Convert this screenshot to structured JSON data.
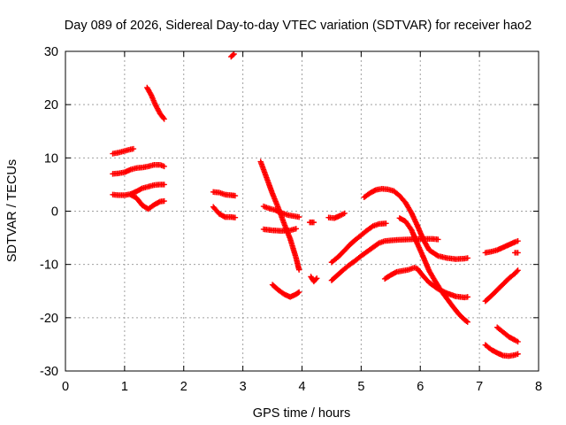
{
  "chart_data": {
    "type": "scatter",
    "title": "Day 089 of 2026, Sidereal Day-to-day VTEC variation (SDTVAR) for receiver hao2",
    "xlabel": "GPS time / hours",
    "ylabel": "SDTVAR / TECUs",
    "xlim": [
      0,
      8
    ],
    "ylim": [
      -30,
      30
    ],
    "xticks": [
      "0",
      "1",
      "2",
      "3",
      "4",
      "5",
      "6",
      "7",
      "8"
    ],
    "yticks": [
      "-30",
      "-20",
      "-10",
      "0",
      "10",
      "20",
      "30"
    ],
    "grid": true,
    "marker": "plus",
    "color": "#ff0000",
    "series": [
      {
        "points": [
          [
            0.8,
            10.8
          ],
          [
            0.9,
            11.0
          ],
          [
            1.0,
            11.3
          ],
          [
            1.1,
            11.6
          ],
          [
            1.15,
            11.7
          ]
        ]
      },
      {
        "points": [
          [
            0.8,
            7.0
          ],
          [
            0.9,
            7.1
          ],
          [
            1.0,
            7.3
          ],
          [
            1.1,
            7.8
          ],
          [
            1.2,
            8.1
          ],
          [
            1.3,
            8.2
          ],
          [
            1.4,
            8.4
          ],
          [
            1.5,
            8.7
          ],
          [
            1.6,
            8.7
          ],
          [
            1.67,
            8.4
          ]
        ]
      },
      {
        "points": [
          [
            0.8,
            3.1
          ],
          [
            0.9,
            3.0
          ],
          [
            1.0,
            3.0
          ],
          [
            1.1,
            3.2
          ],
          [
            1.2,
            3.7
          ],
          [
            1.3,
            4.3
          ],
          [
            1.4,
            4.6
          ],
          [
            1.5,
            4.9
          ],
          [
            1.6,
            5.0
          ],
          [
            1.67,
            5.0
          ]
        ]
      },
      {
        "points": [
          [
            1.1,
            3.1
          ],
          [
            1.2,
            2.5
          ],
          [
            1.3,
            1.1
          ],
          [
            1.4,
            0.4
          ],
          [
            1.5,
            1.2
          ],
          [
            1.6,
            1.8
          ],
          [
            1.67,
            1.9
          ]
        ]
      },
      {
        "points": [
          [
            1.38,
            23.2
          ],
          [
            1.45,
            21.8
          ],
          [
            1.52,
            20.0
          ],
          [
            1.6,
            18.3
          ],
          [
            1.67,
            17.3
          ]
        ]
      },
      {
        "points": [
          [
            2.5,
            3.6
          ],
          [
            2.6,
            3.5
          ],
          [
            2.7,
            3.1
          ],
          [
            2.8,
            3.0
          ],
          [
            2.87,
            2.9
          ]
        ]
      },
      {
        "points": [
          [
            2.5,
            0.8
          ],
          [
            2.6,
            -0.5
          ],
          [
            2.7,
            -1.1
          ],
          [
            2.8,
            -1.1
          ],
          [
            2.87,
            -1.2
          ]
        ]
      },
      {
        "points": [
          [
            2.8,
            29.0
          ],
          [
            2.85,
            29.5
          ]
        ]
      },
      {
        "points": [
          [
            3.3,
            9.3
          ],
          [
            3.4,
            6.3
          ],
          [
            3.5,
            3.3
          ],
          [
            3.6,
            0.6
          ],
          [
            3.7,
            -2.4
          ],
          [
            3.8,
            -5.2
          ],
          [
            3.9,
            -8.8
          ],
          [
            3.95,
            -11.0
          ]
        ]
      },
      {
        "points": [
          [
            3.35,
            0.9
          ],
          [
            3.45,
            0.5
          ],
          [
            3.55,
            0.2
          ],
          [
            3.65,
            -0.3
          ],
          [
            3.75,
            -0.7
          ],
          [
            3.85,
            -0.9
          ],
          [
            3.95,
            -1.1
          ]
        ]
      },
      {
        "points": [
          [
            3.35,
            -3.4
          ],
          [
            3.5,
            -3.6
          ],
          [
            3.65,
            -3.7
          ],
          [
            3.8,
            -3.6
          ],
          [
            3.9,
            -3.3
          ]
        ]
      },
      {
        "points": [
          [
            3.5,
            -13.8
          ],
          [
            3.6,
            -14.8
          ],
          [
            3.7,
            -15.6
          ],
          [
            3.8,
            -16.1
          ],
          [
            3.9,
            -15.6
          ],
          [
            3.95,
            -15.2
          ]
        ]
      },
      {
        "points": [
          [
            4.13,
            -2.1
          ],
          [
            4.2,
            -2.1
          ]
        ]
      },
      {
        "points": [
          [
            4.15,
            -12.3
          ],
          [
            4.2,
            -13.2
          ],
          [
            4.25,
            -12.6
          ]
        ]
      },
      {
        "points": [
          [
            4.45,
            -1.2
          ],
          [
            4.55,
            -1.3
          ],
          [
            4.65,
            -0.8
          ],
          [
            4.72,
            -0.4
          ]
        ]
      },
      {
        "points": [
          [
            4.5,
            -9.6
          ],
          [
            4.6,
            -8.7
          ],
          [
            4.7,
            -7.6
          ],
          [
            4.8,
            -6.4
          ],
          [
            4.9,
            -5.4
          ],
          [
            5.0,
            -4.5
          ],
          [
            5.1,
            -3.6
          ],
          [
            5.2,
            -2.8
          ],
          [
            5.3,
            -2.4
          ],
          [
            5.42,
            -2.3
          ]
        ]
      },
      {
        "points": [
          [
            4.5,
            -13.0
          ],
          [
            4.6,
            -12.0
          ],
          [
            4.7,
            -11.0
          ],
          [
            4.8,
            -10.1
          ],
          [
            4.9,
            -9.3
          ],
          [
            5.0,
            -8.4
          ],
          [
            5.1,
            -7.6
          ],
          [
            5.2,
            -6.8
          ],
          [
            5.3,
            -6.0
          ],
          [
            5.4,
            -5.6
          ],
          [
            5.5,
            -5.5
          ],
          [
            5.6,
            -5.4
          ],
          [
            5.8,
            -5.3
          ],
          [
            6.0,
            -5.2
          ],
          [
            6.2,
            -5.2
          ],
          [
            6.3,
            -5.3
          ]
        ]
      },
      {
        "points": [
          [
            5.05,
            2.6
          ],
          [
            5.15,
            3.4
          ],
          [
            5.25,
            4.0
          ],
          [
            5.35,
            4.2
          ],
          [
            5.45,
            4.1
          ],
          [
            5.55,
            3.8
          ],
          [
            5.65,
            2.9
          ],
          [
            5.75,
            1.6
          ],
          [
            5.85,
            -0.3
          ],
          [
            5.95,
            -2.7
          ],
          [
            6.05,
            -5.3
          ],
          [
            6.15,
            -7.3
          ],
          [
            6.3,
            -8.4
          ],
          [
            6.45,
            -8.8
          ],
          [
            6.6,
            -9.0
          ],
          [
            6.75,
            -8.9
          ],
          [
            6.8,
            -8.8
          ]
        ]
      },
      {
        "points": [
          [
            5.65,
            -1.3
          ],
          [
            5.75,
            -1.9
          ],
          [
            5.85,
            -3.5
          ],
          [
            5.95,
            -6.1
          ],
          [
            6.05,
            -8.6
          ],
          [
            6.15,
            -11.2
          ],
          [
            6.25,
            -13.1
          ],
          [
            6.35,
            -14.9
          ],
          [
            6.45,
            -16.4
          ],
          [
            6.55,
            -17.9
          ],
          [
            6.65,
            -19.3
          ],
          [
            6.75,
            -20.4
          ],
          [
            6.8,
            -20.8
          ]
        ]
      },
      {
        "points": [
          [
            5.4,
            -12.7
          ],
          [
            5.5,
            -12.0
          ],
          [
            5.6,
            -11.4
          ],
          [
            5.7,
            -11.2
          ],
          [
            5.8,
            -11.0
          ],
          [
            5.9,
            -10.6
          ],
          [
            5.95,
            -10.8
          ],
          [
            6.05,
            -12.2
          ],
          [
            6.15,
            -13.4
          ],
          [
            6.3,
            -14.6
          ],
          [
            6.45,
            -15.4
          ],
          [
            6.6,
            -16.0
          ],
          [
            6.75,
            -16.2
          ],
          [
            6.8,
            -16.1
          ]
        ]
      },
      {
        "points": [
          [
            7.1,
            -7.8
          ],
          [
            7.2,
            -7.6
          ],
          [
            7.3,
            -7.3
          ],
          [
            7.4,
            -6.8
          ],
          [
            7.5,
            -6.3
          ],
          [
            7.6,
            -5.8
          ],
          [
            7.65,
            -5.6
          ]
        ]
      },
      {
        "points": [
          [
            7.6,
            -7.8
          ],
          [
            7.65,
            -7.8
          ]
        ]
      },
      {
        "points": [
          [
            7.1,
            -16.9
          ],
          [
            7.2,
            -15.9
          ],
          [
            7.3,
            -14.8
          ],
          [
            7.4,
            -13.7
          ],
          [
            7.5,
            -12.6
          ],
          [
            7.6,
            -11.7
          ],
          [
            7.65,
            -11.1
          ]
        ]
      },
      {
        "points": [
          [
            7.3,
            -21.8
          ],
          [
            7.4,
            -22.7
          ],
          [
            7.5,
            -23.6
          ],
          [
            7.6,
            -24.2
          ],
          [
            7.65,
            -24.5
          ]
        ]
      },
      {
        "points": [
          [
            7.1,
            -25.1
          ],
          [
            7.2,
            -26.0
          ],
          [
            7.3,
            -26.6
          ],
          [
            7.4,
            -27.1
          ],
          [
            7.5,
            -27.2
          ],
          [
            7.6,
            -27.0
          ],
          [
            7.65,
            -26.8
          ]
        ]
      }
    ]
  }
}
